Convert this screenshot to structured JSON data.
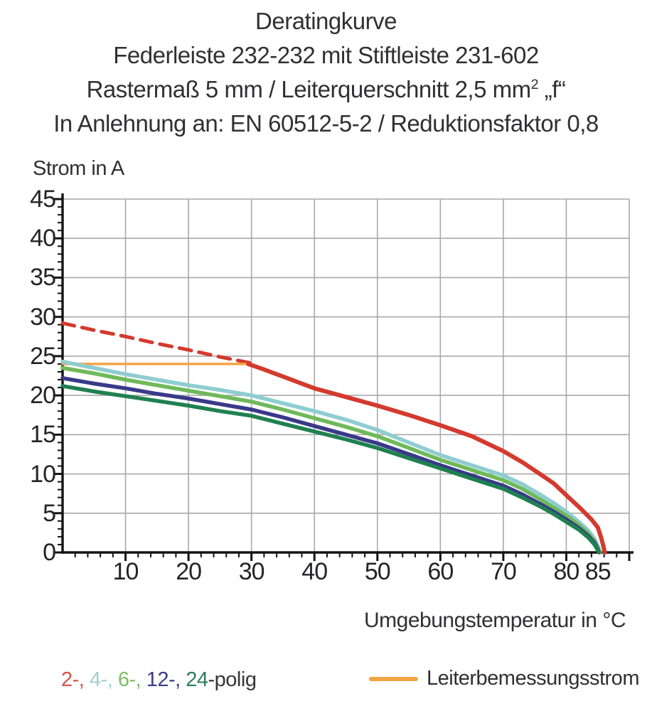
{
  "title": {
    "line1": "Deratingkurve",
    "line2": "Federleiste 232-232 mit Stiftleiste 231-602",
    "line3_pre": "Rastermaß 5 mm / Leiterquerschnitt 2,5 mm",
    "line3_sup": "2",
    "line3_post": " „f“",
    "line4": "In Anlehnung an: EN 60512-5-2 / Reduktionsfaktor 0,8"
  },
  "axes": {
    "y_label": "Strom in A",
    "x_label": "Umgebungstemperatur in °C"
  },
  "legend": {
    "poles": [
      {
        "label": "2",
        "color": "#d4534a"
      },
      {
        "label": "4",
        "color": "#a3ced2"
      },
      {
        "label": "6",
        "color": "#7cbd63"
      },
      {
        "label": "12",
        "color": "#3c3c88"
      },
      {
        "label": "24",
        "color": "#2d7c5a"
      }
    ],
    "separator": "-, ",
    "suffix": "-polig",
    "rated_label": "Leiterbemessungsstrom",
    "rated_color": "#f2a444"
  },
  "chart_data": {
    "type": "line",
    "title": "Deratingkurve",
    "xlabel": "Umgebungstemperatur in °C",
    "ylabel": "Strom in A",
    "xlim": [
      0,
      90
    ],
    "ylim": [
      0,
      45
    ],
    "grid": true,
    "x_gridlines": [
      10,
      20,
      30,
      40,
      50,
      60,
      70,
      80,
      90
    ],
    "y_gridlines": [
      5,
      10,
      15,
      20,
      25,
      30,
      35,
      40,
      45
    ],
    "x_tick_labels": [
      10,
      20,
      30,
      40,
      50,
      60,
      70,
      80,
      85
    ],
    "y_tick_labels": [
      45,
      40,
      35,
      30,
      25,
      20,
      15,
      10,
      5,
      0
    ],
    "grid_color": "#a9a9a9",
    "axis_color": "#141414",
    "series": [
      {
        "name": "2-polig-ohne-begrenzung",
        "color": "#d43a2e",
        "width": 5,
        "dash": "17 11",
        "points": [
          [
            0,
            29.2
          ],
          [
            5,
            28.3
          ],
          [
            10,
            27.5
          ],
          [
            15,
            26.6
          ],
          [
            20,
            25.8
          ],
          [
            25,
            24.9
          ],
          [
            30,
            24.1
          ]
        ]
      },
      {
        "name": "leiterbemessungsstrom",
        "color": "#f2a444",
        "width": 3.5,
        "points": [
          [
            0,
            24
          ],
          [
            29.5,
            24
          ]
        ]
      },
      {
        "name": "4-polig",
        "color": "#8ecdd0",
        "width": 5.5,
        "points": [
          [
            0,
            24.3
          ],
          [
            5,
            23.5
          ],
          [
            10,
            22.7
          ],
          [
            15,
            22
          ],
          [
            20,
            21.3
          ],
          [
            25,
            20.7
          ],
          [
            30,
            20
          ],
          [
            35,
            19
          ],
          [
            40,
            18
          ],
          [
            45,
            16.9
          ],
          [
            50,
            15.6
          ],
          [
            55,
            14
          ],
          [
            60,
            12.4
          ],
          [
            65,
            11.1
          ],
          [
            70,
            9.8
          ],
          [
            73,
            8.7
          ],
          [
            76,
            7.3
          ],
          [
            78,
            6.3
          ],
          [
            80,
            5.2
          ],
          [
            82,
            3.9
          ],
          [
            83.5,
            2.8
          ],
          [
            84.5,
            1.7
          ],
          [
            85.1,
            0.7
          ],
          [
            85.35,
            0
          ]
        ]
      },
      {
        "name": "6-polig",
        "color": "#6fb95a",
        "width": 5.5,
        "points": [
          [
            0,
            23.5
          ],
          [
            5,
            22.8
          ],
          [
            10,
            22
          ],
          [
            15,
            21.3
          ],
          [
            20,
            20.6
          ],
          [
            25,
            19.9
          ],
          [
            30,
            19.2
          ],
          [
            35,
            18.2
          ],
          [
            40,
            17.1
          ],
          [
            45,
            16
          ],
          [
            50,
            14.8
          ],
          [
            55,
            13.3
          ],
          [
            60,
            11.8
          ],
          [
            65,
            10.5
          ],
          [
            70,
            9.2
          ],
          [
            73,
            8.1
          ],
          [
            76,
            6.7
          ],
          [
            78,
            5.7
          ],
          [
            80,
            4.7
          ],
          [
            82,
            3.5
          ],
          [
            83.5,
            2.4
          ],
          [
            84.5,
            1.4
          ],
          [
            85.05,
            0.5
          ],
          [
            85.3,
            0
          ]
        ]
      },
      {
        "name": "12-polig",
        "color": "#39398a",
        "width": 5.5,
        "points": [
          [
            0,
            22.2
          ],
          [
            5,
            21.5
          ],
          [
            10,
            20.9
          ],
          [
            15,
            20.2
          ],
          [
            20,
            19.6
          ],
          [
            25,
            18.9
          ],
          [
            30,
            18.2
          ],
          [
            35,
            17.2
          ],
          [
            40,
            16.1
          ],
          [
            45,
            15
          ],
          [
            50,
            13.9
          ],
          [
            55,
            12.5
          ],
          [
            60,
            11.1
          ],
          [
            65,
            9.8
          ],
          [
            70,
            8.5
          ],
          [
            73,
            7.4
          ],
          [
            76,
            6.1
          ],
          [
            78,
            5.2
          ],
          [
            80,
            4.2
          ],
          [
            82,
            3.1
          ],
          [
            83.5,
            2.1
          ],
          [
            84.5,
            1.2
          ],
          [
            85,
            0.4
          ],
          [
            85.2,
            0
          ]
        ]
      },
      {
        "name": "24-polig",
        "color": "#1f8050",
        "width": 5.5,
        "points": [
          [
            0,
            21.2
          ],
          [
            5,
            20.5
          ],
          [
            10,
            19.9
          ],
          [
            15,
            19.3
          ],
          [
            20,
            18.7
          ],
          [
            25,
            18
          ],
          [
            30,
            17.4
          ],
          [
            35,
            16.4
          ],
          [
            40,
            15.4
          ],
          [
            45,
            14.4
          ],
          [
            50,
            13.3
          ],
          [
            55,
            12
          ],
          [
            60,
            10.7
          ],
          [
            65,
            9.4
          ],
          [
            70,
            8.1
          ],
          [
            73,
            7
          ],
          [
            76,
            5.8
          ],
          [
            78,
            4.9
          ],
          [
            80,
            3.9
          ],
          [
            82,
            2.9
          ],
          [
            83.5,
            1.9
          ],
          [
            84.5,
            1
          ],
          [
            85,
            0.3
          ],
          [
            85.15,
            0
          ]
        ]
      },
      {
        "name": "2-polig",
        "color": "#d43a2e",
        "width": 6,
        "points": [
          [
            29.5,
            24
          ],
          [
            32,
            23.3
          ],
          [
            35,
            22.4
          ],
          [
            40,
            20.9
          ],
          [
            45,
            19.8
          ],
          [
            50,
            18.7
          ],
          [
            55,
            17.5
          ],
          [
            60,
            16.2
          ],
          [
            65,
            14.8
          ],
          [
            70,
            12.9
          ],
          [
            73,
            11.5
          ],
          [
            76,
            9.9
          ],
          [
            78,
            8.8
          ],
          [
            80,
            7.3
          ],
          [
            82,
            5.8
          ],
          [
            84,
            4.2
          ],
          [
            85,
            3.2
          ],
          [
            85.5,
            2
          ],
          [
            85.9,
            0.8
          ],
          [
            86.1,
            0
          ]
        ]
      }
    ]
  }
}
